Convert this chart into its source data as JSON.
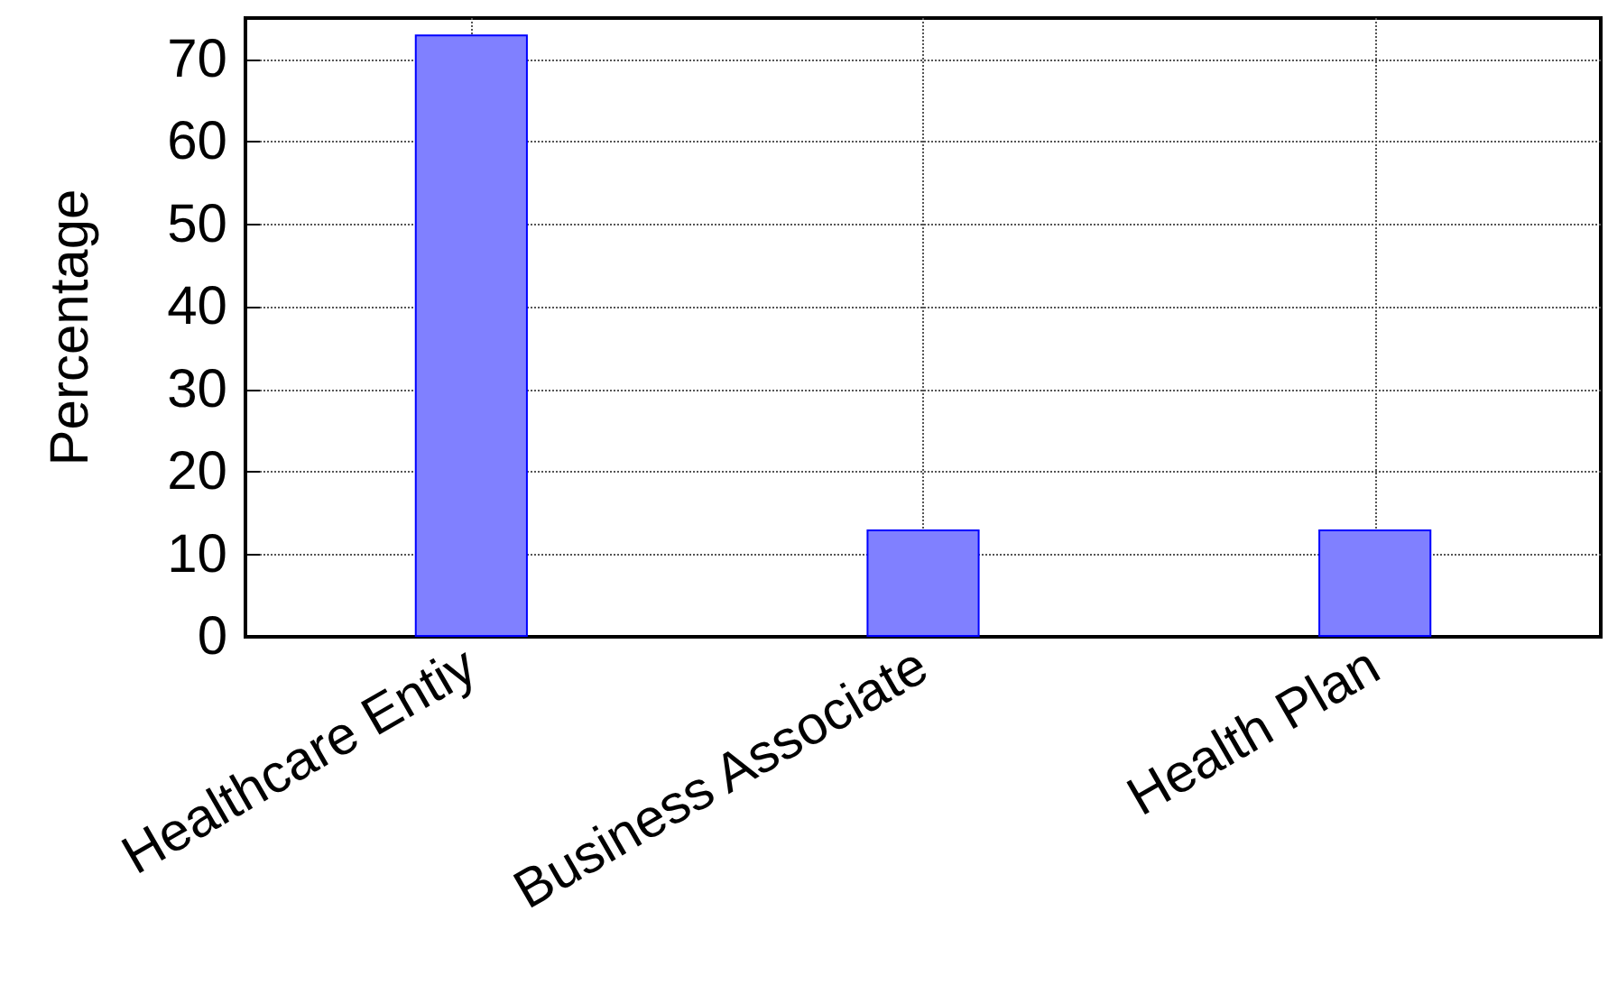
{
  "chart_data": {
    "type": "bar",
    "ylabel": "Percentage",
    "categories": [
      "Healthcare Entiy",
      "Business Associate",
      "Health Plan"
    ],
    "values": [
      73,
      13,
      13
    ],
    "color": "#8080ff",
    "ylim": [
      0,
      75
    ],
    "yticks": [
      0,
      10,
      20,
      30,
      40,
      50,
      60,
      70
    ],
    "grid": true
  }
}
